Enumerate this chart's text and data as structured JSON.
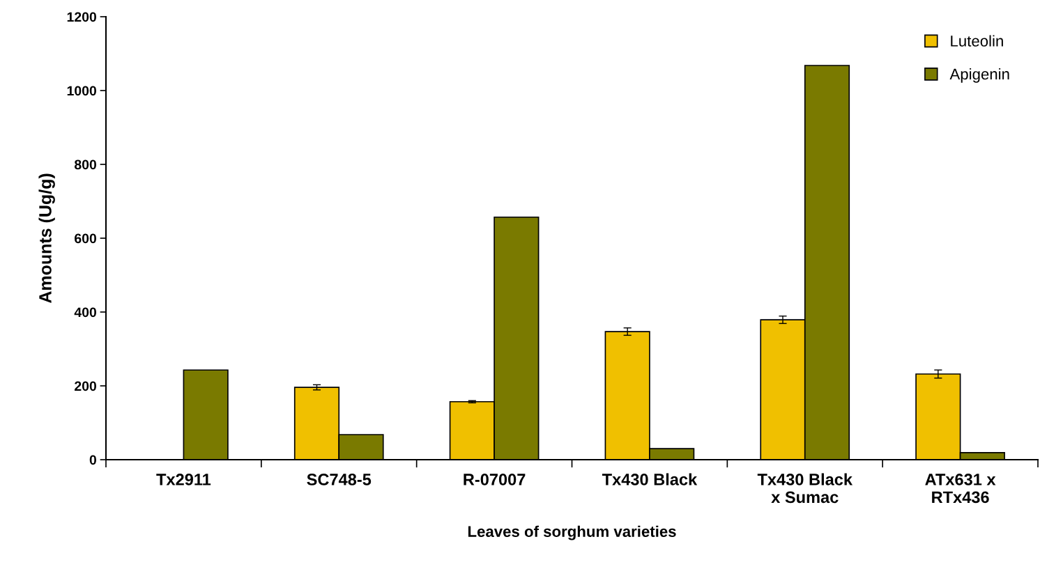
{
  "chart_data": {
    "type": "bar",
    "xlabel": "Leaves of sorghum varieties",
    "ylabel": "Amounts (Ug/g)",
    "categories": [
      "Tx2911",
      "SC748-5",
      "R-07007",
      "Tx430 Black",
      "Tx430 Black\nx Sumac",
      "ATx631 x\nRTx436"
    ],
    "series": [
      {
        "name": "Luteolin",
        "color": "#f0c000",
        "values": [
          null,
          196,
          157,
          347,
          379,
          232
        ],
        "errors": [
          null,
          7,
          3,
          10,
          10,
          11
        ]
      },
      {
        "name": "Apigenin",
        "color": "#7a7a00",
        "values": [
          243,
          68,
          657,
          30,
          1068,
          19
        ]
      }
    ],
    "ylim": [
      0,
      1200
    ],
    "yticks": [
      0,
      200,
      400,
      600,
      800,
      1000,
      1200
    ],
    "grid": false,
    "legend": "top right"
  }
}
